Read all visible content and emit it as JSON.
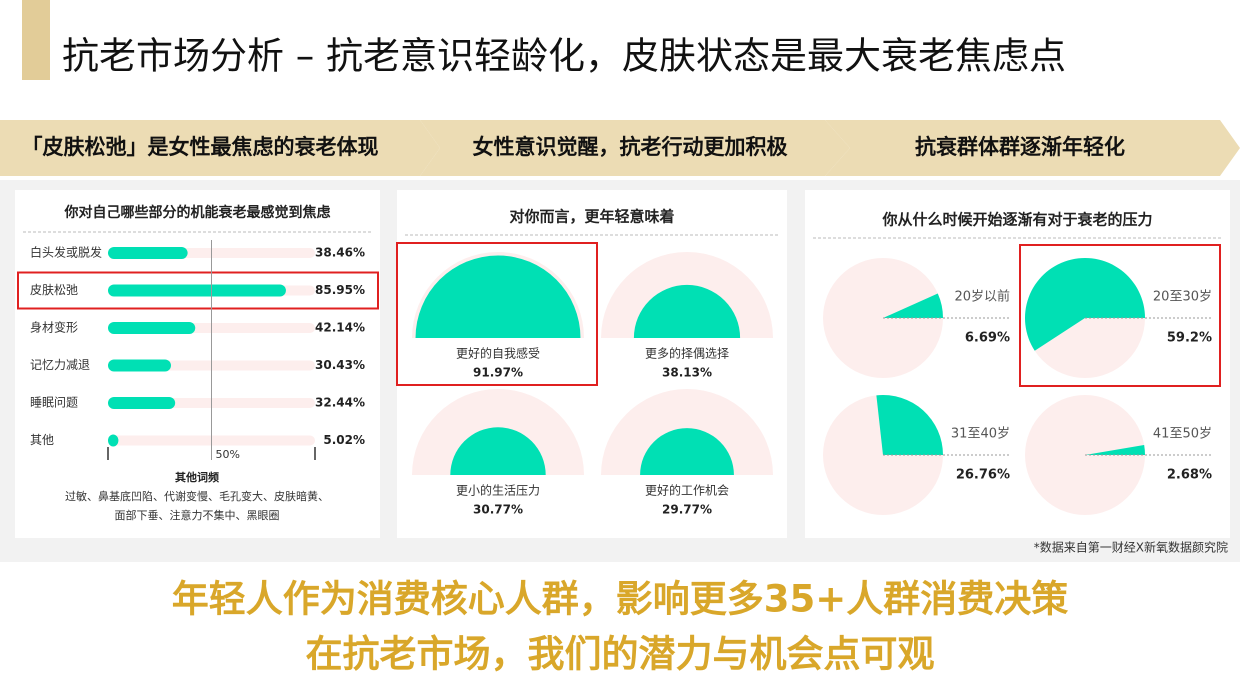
{
  "title": "抗老市场分析 – 抗老意识轻龄化，皮肤状态是最大衰老焦虑点",
  "banners": [
    "「皮肤松弛」是女性最焦虑的衰老体现",
    "女性意识觉醒，抗老行动更加积极",
    "抗衰群体群逐渐年轻化"
  ],
  "chart_data": [
    {
      "type": "bar",
      "title": "你对自己哪些部分的机能衰老最感觉到焦虑",
      "categories": [
        "白头发或脱发",
        "皮肤松弛",
        "身材变形",
        "记忆力减退",
        "睡眠问题",
        "其他"
      ],
      "values": [
        38.46,
        85.95,
        42.14,
        30.43,
        32.44,
        5.02
      ],
      "value_labels": [
        "38.46%",
        "85.95%",
        "42.14%",
        "30.43%",
        "32.44%",
        "5.02%"
      ],
      "color": "#00e0b4",
      "background_color": "#fdeeed",
      "xlim": [
        0,
        100
      ],
      "xticks": [
        {
          "value": 50,
          "label": "50%"
        }
      ],
      "highlight": [
        1
      ],
      "note_title": "其他词频",
      "note": [
        "过敏、鼻基底凹陷、代谢变慢、毛孔变大、皮肤暗黄、",
        "面部下垂、注意力不集中、黑眼圈"
      ]
    },
    {
      "type": "gauge",
      "title": "对你而言，更年轻意味着",
      "categories": [
        "更好的自我感受",
        "更多的择偶选择",
        "更小的生活压力",
        "更好的工作机会"
      ],
      "values": [
        91.97,
        38.13,
        30.77,
        29.77
      ],
      "value_labels": [
        "91.97%",
        "38.13%",
        "30.77%",
        "29.77%"
      ],
      "color": "#00e0b4",
      "background_color": "#fdeeed",
      "highlight": [
        0
      ]
    },
    {
      "type": "pie",
      "title": "你从什么时候开始逐渐有对于衰老的压力",
      "categories": [
        "20岁以前",
        "20至30岁",
        "31至40岁",
        "41至50岁"
      ],
      "values": [
        6.69,
        59.2,
        26.76,
        2.68
      ],
      "value_labels": [
        "6.69%",
        "59.2%",
        "26.76%",
        "2.68%"
      ],
      "color": "#00e0b4",
      "background_color": "#fdeeed",
      "highlight": [
        1
      ]
    }
  ],
  "source": "*数据来自第一财经X新氧数据颜究院",
  "conclusion": [
    "年轻人作为消费核心人群，影响更多35+人群消费决策",
    "在抗老市场，我们的潜力与机会点可观"
  ]
}
